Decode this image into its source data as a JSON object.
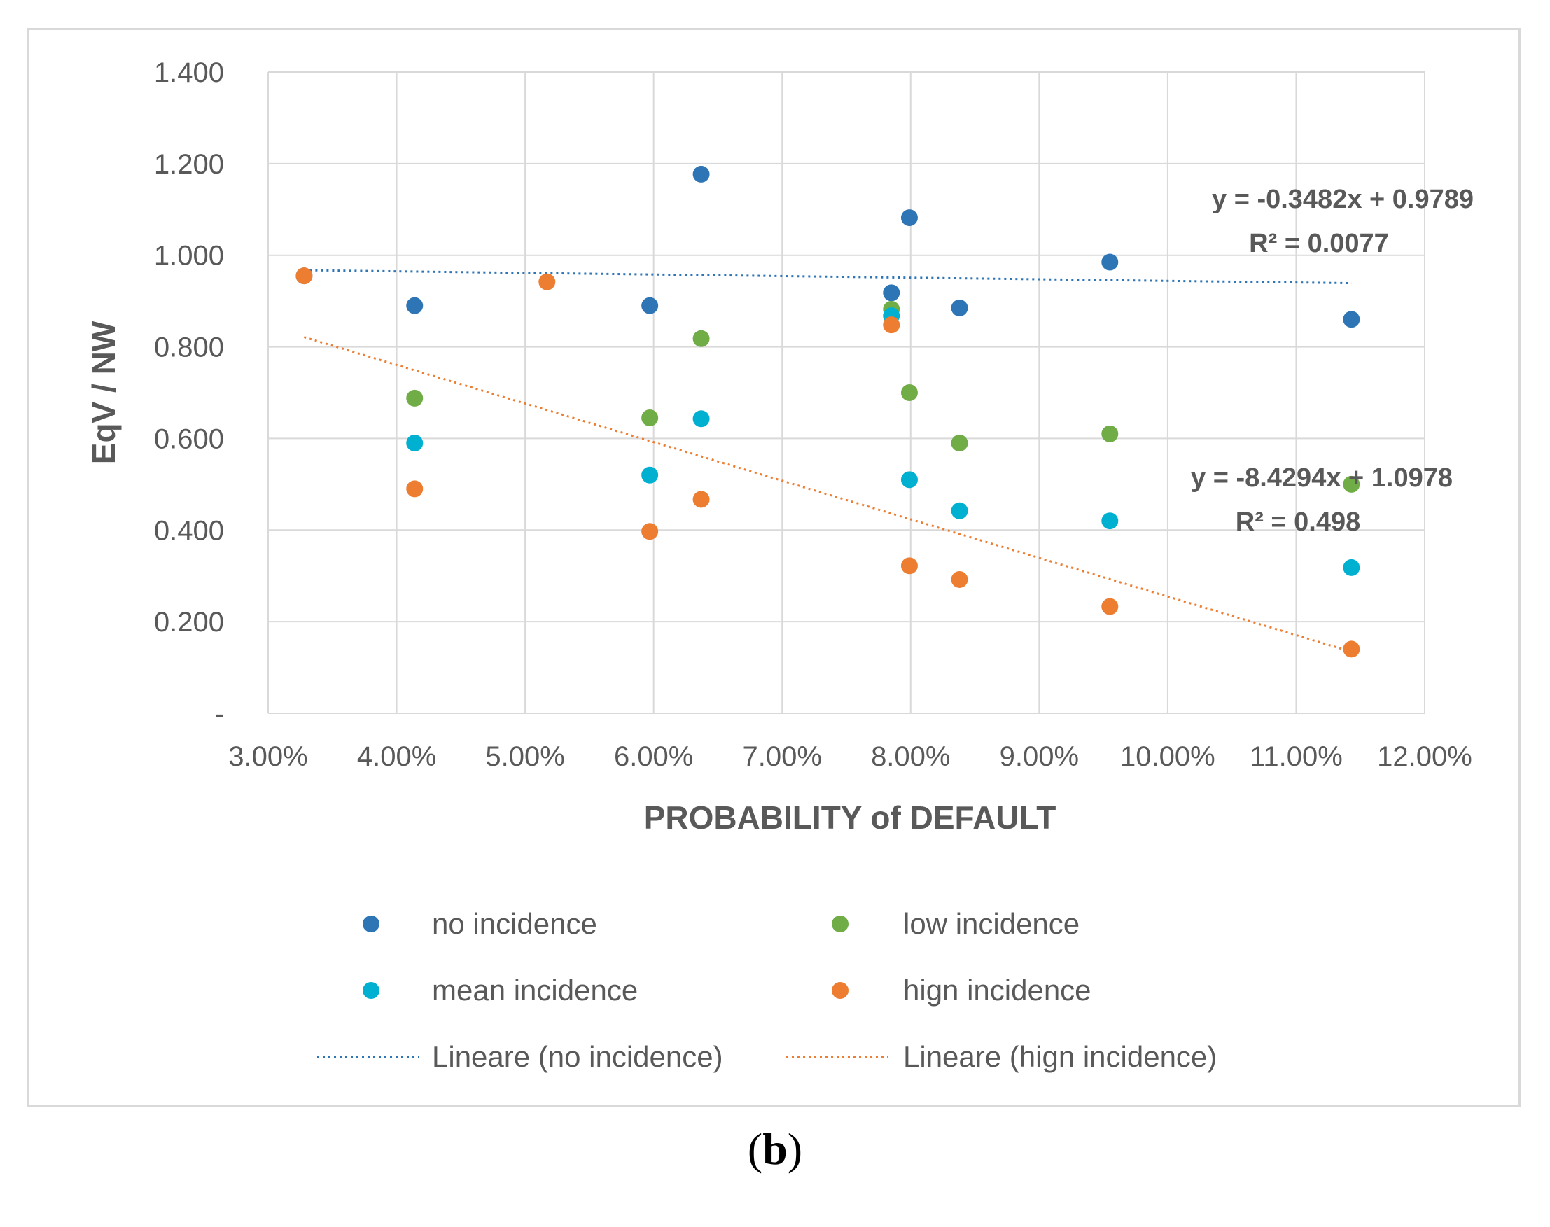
{
  "chart_data": {
    "type": "scatter",
    "xlabel": "PROBABILITY of DEFAULT",
    "ylabel": "EqV / NW",
    "xlim": [
      0.03,
      0.12
    ],
    "ylim": [
      0,
      1.4
    ],
    "x_ticks": [
      "3.00%",
      "4.00%",
      "5.00%",
      "6.00%",
      "7.00%",
      "8.00%",
      "9.00%",
      "10.00%",
      "11.00%",
      "12.00%"
    ],
    "y_ticks": [
      "-",
      "0.200",
      "0.400",
      "0.600",
      "0.800",
      "1.000",
      "1.200",
      "1.400"
    ],
    "grid": true,
    "legend_position": "bottom",
    "series": [
      {
        "name": "no incidence",
        "color": "#2e75b6",
        "x": [
          0.0328,
          0.0414,
          0.0597,
          0.0637,
          0.0785,
          0.0799,
          0.0838,
          0.0955,
          0.1143
        ],
        "y": [
          0.955,
          0.89,
          0.89,
          1.177,
          0.918,
          1.082,
          0.885,
          0.985,
          0.86
        ]
      },
      {
        "name": "low incidence",
        "color": "#70ad47",
        "x": [
          0.0414,
          0.0597,
          0.0637,
          0.0785,
          0.0799,
          0.0838,
          0.0955,
          0.1143
        ],
        "y": [
          0.688,
          0.645,
          0.818,
          0.882,
          0.7,
          0.59,
          0.61,
          0.5
        ]
      },
      {
        "name": "mean incidence",
        "color": "#00b0d0",
        "x": [
          0.0414,
          0.0597,
          0.0637,
          0.0785,
          0.0799,
          0.0838,
          0.0955,
          0.1143
        ],
        "y": [
          0.59,
          0.52,
          0.643,
          0.868,
          0.51,
          0.442,
          0.42,
          0.318
        ]
      },
      {
        "name": "hign incidence",
        "color": "#ed7d31",
        "x": [
          0.0328,
          0.0517,
          0.0414,
          0.0597,
          0.0637,
          0.0785,
          0.0799,
          0.0838,
          0.0955,
          0.1143
        ],
        "y": [
          0.955,
          0.942,
          0.49,
          0.397,
          0.467,
          0.848,
          0.322,
          0.292,
          0.233,
          0.14
        ]
      }
    ],
    "trendlines": [
      {
        "name": "Lineare (no incidence)",
        "color": "#2e75b6",
        "slope": -0.3482,
        "intercept": 0.9789,
        "x_range": [
          0.0328,
          0.1143
        ],
        "equation": "y = -0.3482x  + 0.9789",
        "r2": "R² = 0.0077"
      },
      {
        "name": "Lineare (hign incidence)",
        "color": "#ed7d31",
        "slope": -8.4294,
        "intercept": 1.0978,
        "x_range": [
          0.0328,
          0.1143
        ],
        "equation": "y = -8.4294x + 1.0978",
        "r2": "R² = 0.498"
      }
    ]
  },
  "caption": {
    "open": "(",
    "letter": "b",
    "close": ")"
  }
}
